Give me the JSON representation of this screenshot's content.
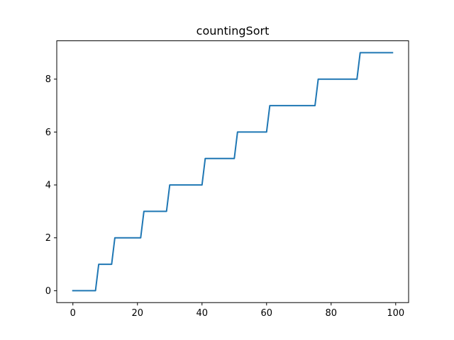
{
  "chart_data": {
    "type": "line",
    "title": "countingSort",
    "xlabel": "",
    "ylabel": "",
    "xlim": [
      -5,
      104
    ],
    "ylim": [
      -0.45,
      9.45
    ],
    "grid": false,
    "x_ticks": [
      0,
      20,
      40,
      60,
      80,
      100
    ],
    "y_ticks": [
      0,
      2,
      4,
      6,
      8
    ],
    "line_color": "#1f77b4",
    "series": [
      {
        "x": [
          0,
          1,
          2,
          3,
          4,
          5,
          6,
          7,
          8,
          9,
          10,
          11,
          12,
          13,
          14,
          15,
          16,
          17,
          18,
          19,
          20,
          21,
          22,
          23,
          24,
          25,
          26,
          27,
          28,
          29,
          30,
          31,
          32,
          33,
          34,
          35,
          36,
          37,
          38,
          39,
          40,
          41,
          42,
          43,
          44,
          45,
          46,
          47,
          48,
          49,
          50,
          51,
          52,
          53,
          54,
          55,
          56,
          57,
          58,
          59,
          60,
          61,
          62,
          63,
          64,
          65,
          66,
          67,
          68,
          69,
          70,
          71,
          72,
          73,
          74,
          75,
          76,
          77,
          78,
          79,
          80,
          81,
          82,
          83,
          84,
          85,
          86,
          87,
          88,
          89,
          90,
          91,
          92,
          93,
          94,
          95,
          96,
          97,
          98,
          99
        ],
        "y": [
          0,
          0,
          0,
          0,
          0,
          0,
          0,
          0,
          1,
          1,
          1,
          1,
          1,
          2,
          2,
          2,
          2,
          2,
          2,
          2,
          2,
          2,
          3,
          3,
          3,
          3,
          3,
          3,
          3,
          3,
          4,
          4,
          4,
          4,
          4,
          4,
          4,
          4,
          4,
          4,
          4,
          5,
          5,
          5,
          5,
          5,
          5,
          5,
          5,
          5,
          5,
          6,
          6,
          6,
          6,
          6,
          6,
          6,
          6,
          6,
          6,
          7,
          7,
          7,
          7,
          7,
          7,
          7,
          7,
          7,
          7,
          7,
          7,
          7,
          7,
          7,
          8,
          8,
          8,
          8,
          8,
          8,
          8,
          8,
          8,
          8,
          8,
          8,
          8,
          9,
          9,
          9,
          9,
          9,
          9,
          9,
          9,
          9,
          9,
          9
        ]
      }
    ]
  }
}
